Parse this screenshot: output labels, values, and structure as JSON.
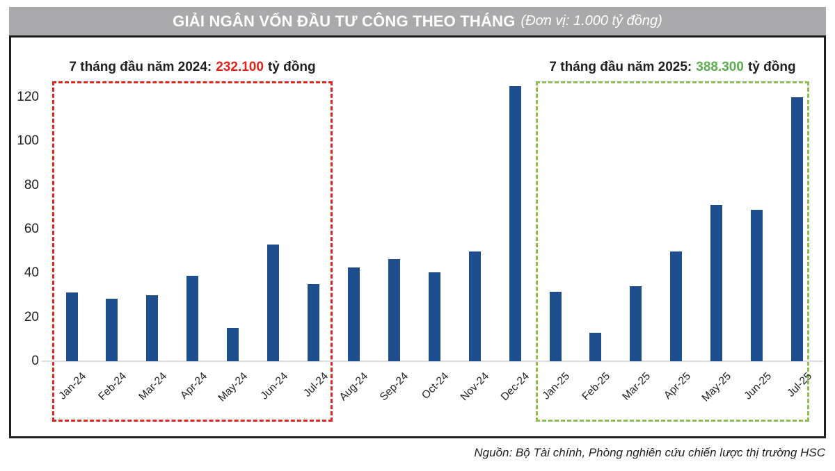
{
  "title": {
    "main": "GIẢI NGÂN VỐN ĐẦU TƯ CÔNG THEO THÁNG",
    "unit": "(Đơn vị: 1.000 tỷ đồng)"
  },
  "annotations": {
    "y2024": {
      "prefix": "7 tháng đầu năm 2024:",
      "value": "232.100",
      "suffix": "tỷ đồng"
    },
    "y2025": {
      "prefix": "7 tháng đầu năm 2025:",
      "value": "388.300",
      "suffix": "tỷ đồng"
    }
  },
  "source": "Nguồn: Bộ Tài chính, Phòng nghiên cứu chiến lược thị trường HSC",
  "colors": {
    "bar": "#1F4E8F",
    "title_bg": "#AAAAAC",
    "title_text": "#FFFFFF",
    "red_accent": "#E1251B",
    "green_text": "#5BAD4D",
    "green_dash": "#8CC152",
    "axis_text": "#1F1F1F",
    "baseline": "#DCDCDC"
  },
  "chart_data": {
    "type": "bar",
    "title": "GIẢI NGÂN VỐN ĐẦU TƯ CÔNG THEO THÁNG",
    "unit_label": "1.000 tỷ đồng",
    "categories": [
      "Jan-24",
      "Feb-24",
      "Mar-24",
      "Apr-24",
      "May-24",
      "Jun-24",
      "Jul-24",
      "Aug-24",
      "Sep-24",
      "Oct-24",
      "Nov-24",
      "Dec-24",
      "Jan-25",
      "Feb-25",
      "Mar-25",
      "Apr-25",
      "May-25",
      "Jun-25",
      "Jul-25"
    ],
    "values": [
      31.4,
      28.5,
      30,
      38.8,
      15.2,
      53,
      35.2,
      42.5,
      46.5,
      40.5,
      50,
      125,
      31.5,
      13,
      34,
      50,
      71,
      68.8,
      120
    ],
    "xlabel": "",
    "ylabel": "",
    "ylim": [
      0,
      120
    ],
    "yticks": [
      0,
      20,
      40,
      60,
      80,
      100,
      120
    ],
    "grid": false,
    "legend": "none",
    "notes": "Dec-24 bar exceeds the 120 axis maximum (~125)",
    "highlight_boxes": [
      {
        "group": "7 tháng đầu năm 2024",
        "from": "Jan-24",
        "to": "Jul-24",
        "total": "232.100 tỷ đồng",
        "style": "red-dashed"
      },
      {
        "group": "7 tháng đầu năm 2025",
        "from": "Jan-25",
        "to": "Jul-25",
        "total": "388.300 tỷ đồng",
        "style": "green-dashed"
      }
    ]
  }
}
